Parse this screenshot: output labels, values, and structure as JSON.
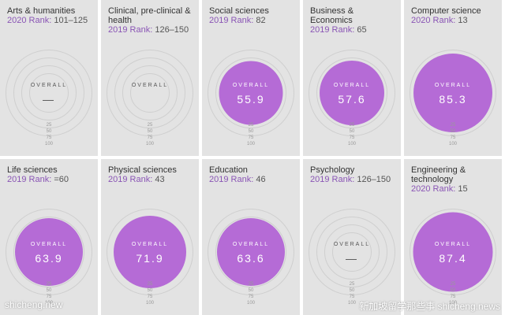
{
  "cards": [
    {
      "subject": "Arts & humanities",
      "rank_label": "2020 Rank:",
      "rank_value": "101–125",
      "overall": "OVERALL",
      "score": "—",
      "filled": false,
      "fill_fraction": 0
    },
    {
      "subject": "Clinical, pre-clinical & health",
      "rank_label": "2019 Rank:",
      "rank_value": "126–150",
      "overall": "OVERALL",
      "score": "",
      "filled": false,
      "fill_fraction": 0
    },
    {
      "subject": "Social sciences",
      "rank_label": "2019 Rank:",
      "rank_value": "82",
      "overall": "OVERALL",
      "score": "55.9",
      "filled": true,
      "fill_fraction": 0.559
    },
    {
      "subject": "Business & Economics",
      "rank_label": "2019 Rank:",
      "rank_value": "65",
      "overall": "OVERALL",
      "score": "57.6",
      "filled": true,
      "fill_fraction": 0.576
    },
    {
      "subject": "Computer science",
      "rank_label": "2020 Rank:",
      "rank_value": "13",
      "overall": "OVERALL",
      "score": "85.3",
      "filled": true,
      "fill_fraction": 0.853
    },
    {
      "subject": "Life sciences",
      "rank_label": "2019 Rank:",
      "rank_value": "=60",
      "overall": "OVERALL",
      "score": "63.9",
      "filled": true,
      "fill_fraction": 0.639
    },
    {
      "subject": "Physical sciences",
      "rank_label": "2019 Rank:",
      "rank_value": "43",
      "overall": "OVERALL",
      "score": "71.9",
      "filled": true,
      "fill_fraction": 0.719
    },
    {
      "subject": "Education",
      "rank_label": "2019 Rank:",
      "rank_value": "46",
      "overall": "OVERALL",
      "score": "63.6",
      "filled": true,
      "fill_fraction": 0.636
    },
    {
      "subject": "Psychology",
      "rank_label": "2019 Rank:",
      "rank_value": "126–150",
      "overall": "OVERALL",
      "score": "—",
      "filled": false,
      "fill_fraction": 0
    },
    {
      "subject": "Engineering & technology",
      "rank_label": "2020 Rank:",
      "rank_value": "15",
      "overall": "OVERALL",
      "score": "87.4",
      "filled": true,
      "fill_fraction": 0.874
    }
  ],
  "ticks": [
    "25",
    "50",
    "75",
    "100"
  ],
  "watermarks": {
    "left": "shicheng.new",
    "right": "新加坡留学那些事 shicheng.news"
  },
  "colors": {
    "fill": "#b56bd6",
    "card_bg": "#e3e3e3",
    "rank_label": "#8a55b5"
  }
}
